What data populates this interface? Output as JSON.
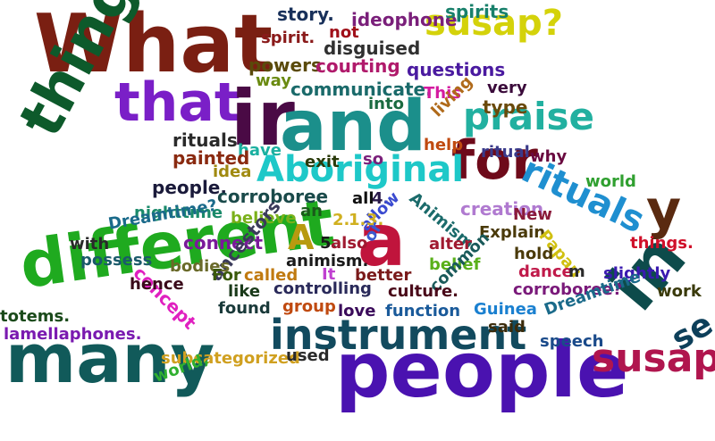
{
  "words": [
    {
      "text": "What",
      "color": "#7a1f12"
    },
    {
      "text": "susap?",
      "color": "#d4d20a"
    },
    {
      "text": "that",
      "color": "#7a1fc7"
    },
    {
      "text": "ir",
      "color": "#4a0a45"
    },
    {
      "text": "and",
      "color": "#1b8f8b"
    },
    {
      "text": "things",
      "color": "#0d5a2b"
    },
    {
      "text": "praise",
      "color": "#22b0a0"
    },
    {
      "text": "for",
      "color": "#6e0a1a"
    },
    {
      "text": "Aboriginal",
      "color": "#1ec8c8"
    },
    {
      "text": "rituals",
      "color": "#1f8fd0"
    },
    {
      "text": "y",
      "color": "#5a2a10"
    },
    {
      "text": "different",
      "color": "#1faa1f"
    },
    {
      "text": "a",
      "color": "#c0143c"
    },
    {
      "text": "A",
      "color": "#b89a10"
    },
    {
      "text": "many",
      "color": "#115a5a"
    },
    {
      "text": "instrument",
      "color": "#124a5e"
    },
    {
      "text": "people",
      "color": "#4a12b0"
    },
    {
      "text": "in",
      "color": "#0d4b4b"
    },
    {
      "text": "susap",
      "color": "#b0154e"
    },
    {
      "text": "se",
      "color": "#0d3f5a"
    },
    {
      "text": "story.",
      "color": "#18305a"
    },
    {
      "text": "ideophone",
      "color": "#7a1f7a"
    },
    {
      "text": "spirits",
      "color": "#18806b"
    },
    {
      "text": "spirit.",
      "color": "#8a1a1a"
    },
    {
      "text": "not",
      "color": "#a0101a"
    },
    {
      "text": "disguised",
      "color": "#303030"
    },
    {
      "text": "powers",
      "color": "#5a4a0a"
    },
    {
      "text": "courting",
      "color": "#b01a6b"
    },
    {
      "text": "questions",
      "color": "#4a1aa0"
    },
    {
      "text": "way",
      "color": "#6a8a10"
    },
    {
      "text": "communicate.",
      "color": "#1a6a6a"
    },
    {
      "text": "This",
      "color": "#d41aa0"
    },
    {
      "text": "very",
      "color": "#3a0a3a"
    },
    {
      "text": "into",
      "color": "#1a6a40"
    },
    {
      "text": "type",
      "color": "#6a4a0a"
    },
    {
      "text": "living",
      "color": "#b06a1a"
    },
    {
      "text": "rituals.",
      "color": "#2a2a2a"
    },
    {
      "text": "have",
      "color": "#1ab0a0"
    },
    {
      "text": "help",
      "color": "#c04a10"
    },
    {
      "text": "ritual",
      "color": "#3a3a8a"
    },
    {
      "text": "painted",
      "color": "#8a2a10"
    },
    {
      "text": "exit",
      "color": "#2a3a0a"
    },
    {
      "text": "so",
      "color": "#7a1f7a"
    },
    {
      "text": "why",
      "color": "#6a0a40"
    },
    {
      "text": "idea",
      "color": "#a08a10"
    },
    {
      "text": "people.",
      "color": "#1a1a3a"
    },
    {
      "text": "corroboree",
      "color": "#1a4a4a"
    },
    {
      "text": "world",
      "color": "#30a030"
    },
    {
      "text": "nighttime",
      "color": "#1a8a6a"
    },
    {
      "text": "Dreamtime?",
      "color": "#1a6a8a"
    },
    {
      "text": "believe",
      "color": "#7ab01a"
    },
    {
      "text": "an",
      "color": "#1a5a1a"
    },
    {
      "text": "all",
      "color": "#101010"
    },
    {
      "text": "4.",
      "color": "#2a1a4a"
    },
    {
      "text": "creation",
      "color": "#b07ad0"
    },
    {
      "text": "allow",
      "color": "#3a4ad0"
    },
    {
      "text": "Animism",
      "color": "#1a6a6a"
    },
    {
      "text": "New",
      "color": "#8a1a3a"
    },
    {
      "text": "2.",
      "color": "#d0b020"
    },
    {
      "text": "1.",
      "color": "#d0b020"
    },
    {
      "text": "3.",
      "color": "#d0b020"
    },
    {
      "text": "with",
      "color": "#2a2a2a"
    },
    {
      "text": "connect",
      "color": "#7a1a9a"
    },
    {
      "text": "ancestors",
      "color": "#3a3a5a"
    },
    {
      "text": "5.",
      "color": "#1a1a1a"
    },
    {
      "text": "also",
      "color": "#a01a30"
    },
    {
      "text": "or",
      "color": "#3a5ad0"
    },
    {
      "text": "alter",
      "color": "#a01a30"
    },
    {
      "text": "Explain",
      "color": "#4a3a0a"
    },
    {
      "text": "Papau",
      "color": "#d0c010"
    },
    {
      "text": "things.",
      "color": "#d0102a"
    },
    {
      "text": "possess",
      "color": "#1a5a6a"
    },
    {
      "text": "bodies",
      "color": "#6a6a2a"
    },
    {
      "text": "concept",
      "color": "#e020c0"
    },
    {
      "text": "It",
      "color": "#c040d0"
    },
    {
      "text": "called",
      "color": "#c07a10"
    },
    {
      "text": "animism.",
      "color": "#1a1a1a"
    },
    {
      "text": "better",
      "color": "#7a1a1a"
    },
    {
      "text": "hold",
      "color": "#4a3a0a"
    },
    {
      "text": "belief",
      "color": "#5ab01a"
    },
    {
      "text": "common",
      "color": "#1a5a5a"
    },
    {
      "text": "dance",
      "color": "#c01a4a"
    },
    {
      "text": "m",
      "color": "#2a2a2a"
    },
    {
      "text": "slightly",
      "color": "#3a1ab0"
    },
    {
      "text": "For",
      "color": "#3a5a0a"
    },
    {
      "text": "hence",
      "color": "#3a0a1a"
    },
    {
      "text": "like",
      "color": "#1a3a1a"
    },
    {
      "text": "found",
      "color": "#1a3a3a"
    },
    {
      "text": "controlling",
      "color": "#2a2a5a"
    },
    {
      "text": "culture.",
      "color": "#4a0a1a"
    },
    {
      "text": "corroboree?",
      "color": "#7a1a7a"
    },
    {
      "text": "work",
      "color": "#3a3a0a"
    },
    {
      "text": "totems.",
      "color": "#1a4a1a"
    },
    {
      "text": "group",
      "color": "#c04a10"
    },
    {
      "text": "love",
      "color": "#3a0a5a"
    },
    {
      "text": "function",
      "color": "#1a5a9a"
    },
    {
      "text": "Guinea",
      "color": "#1a80d0"
    },
    {
      "text": "Dreamtime",
      "color": "#1a6a8a"
    },
    {
      "text": "lamellaphones.",
      "color": "#7a1ab0"
    },
    {
      "text": "said",
      "color": "#3a2a0a"
    },
    {
      "text": "speech",
      "color": "#1a4a8a"
    },
    {
      "text": "subcategorized",
      "color": "#d0a020"
    },
    {
      "text": "used",
      "color": "#2a2a2a"
    },
    {
      "text": "world,",
      "color": "#30b030"
    }
  ]
}
